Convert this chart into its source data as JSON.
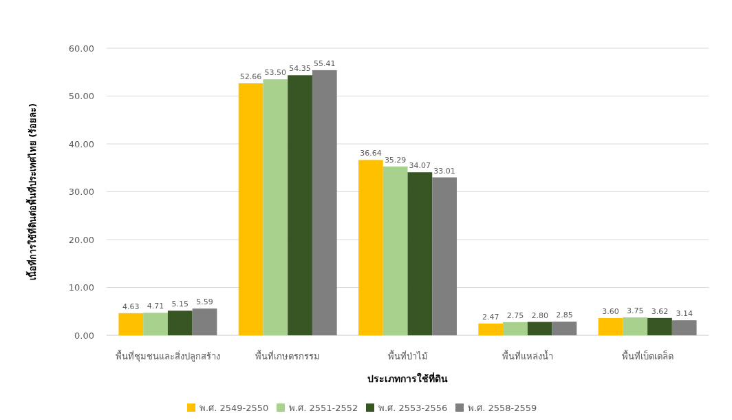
{
  "chart_data": {
    "type": "bar",
    "xlabel": "ประเภทการใช้ที่ดิน",
    "ylabel": "เนื้อที่การใช้ที่ดินต่อพื้นที่ประเทศไทย (ร้อยละ)",
    "categories": [
      "พื้นที่ชุมชนและสิ่งปลูกสร้าง",
      "พื้นที่เกษตรกรรม",
      "พื้นที่ป่าไม้",
      "พื้นที่แหล่งน้ำ",
      "พื้นที่เบ็ดเตล็ด"
    ],
    "series": [
      {
        "name": "พ.ศ. 2549-2550",
        "color": "#ffc000",
        "values": [
          4.63,
          52.66,
          36.64,
          2.47,
          3.6
        ],
        "value_labels": [
          "4.63",
          "52.66",
          "36.64",
          "2.47",
          "3.60"
        ]
      },
      {
        "name": "พ.ศ. 2551-2552",
        "color": "#a9d18e",
        "values": [
          4.71,
          53.5,
          35.29,
          2.75,
          3.75
        ],
        "value_labels": [
          "4.71",
          "53.50",
          "35.29",
          "2.75",
          "3.75"
        ]
      },
      {
        "name": "พ.ศ. 2553-2556",
        "color": "#375623",
        "values": [
          5.15,
          54.35,
          34.07,
          2.8,
          3.62
        ],
        "value_labels": [
          "5.15",
          "54.35",
          "34.07",
          "2.80",
          "3.62"
        ]
      },
      {
        "name": "พ.ศ. 2558-2559",
        "color": "#7f7f7f",
        "values": [
          5.59,
          55.41,
          33.01,
          2.85,
          3.14
        ],
        "value_labels": [
          "5.59",
          "55.41",
          "33.01",
          "2.85",
          "3.14"
        ]
      }
    ],
    "ylim": [
      0,
      60
    ],
    "yticks": [
      {
        "value": 0,
        "label": "0.00"
      },
      {
        "value": 10,
        "label": "10.00"
      },
      {
        "value": 20,
        "label": "20.00"
      },
      {
        "value": 30,
        "label": "30.00"
      },
      {
        "value": 40,
        "label": "40.00"
      },
      {
        "value": 50,
        "label": "50.00"
      },
      {
        "value": 60,
        "label": "60.00"
      }
    ],
    "grid": "y",
    "legend": "bottom"
  }
}
